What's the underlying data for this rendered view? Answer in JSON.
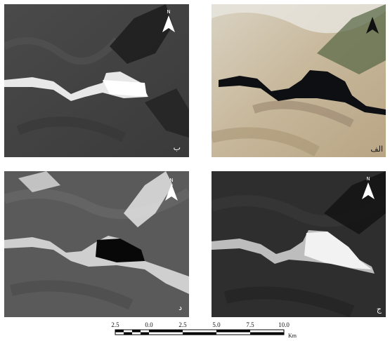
{
  "panels": [
    {
      "id": "b",
      "label": "ب",
      "north": "N"
    },
    {
      "id": "alef",
      "label": "الف",
      "north": ""
    },
    {
      "id": "dal",
      "label": "د",
      "north": "N"
    },
    {
      "id": "jim",
      "label": "ج",
      "north": "N"
    }
  ],
  "scale_bar": {
    "ticks": [
      "2.5",
      "0.0",
      "2.5",
      "5.0",
      "7.5",
      "10.0"
    ],
    "unit": "Km"
  }
}
